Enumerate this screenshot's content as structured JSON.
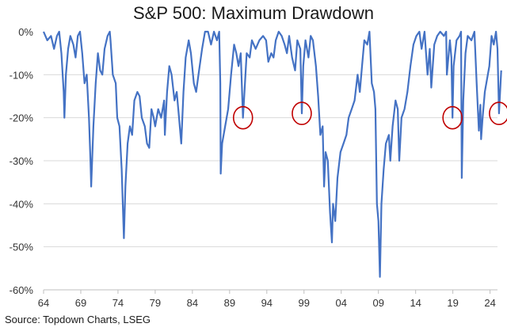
{
  "chart_data": {
    "type": "line",
    "title": "S&P 500: Maximum Drawdown",
    "source": "Source: Topdown Charts, LSEG",
    "xlabel": "",
    "ylabel": "",
    "xlim": [
      1964,
      2025
    ],
    "ylim": [
      -60,
      0
    ],
    "x_ticks": [
      1964,
      1969,
      1974,
      1979,
      1984,
      1989,
      1994,
      1999,
      2004,
      2009,
      2014,
      2019,
      2024
    ],
    "x_tick_labels": [
      "64",
      "69",
      "74",
      "79",
      "84",
      "89",
      "94",
      "99",
      "04",
      "09",
      "14",
      "19",
      "24"
    ],
    "y_ticks": [
      0,
      -10,
      -20,
      -30,
      -40,
      -50,
      -60
    ],
    "y_tick_labels": [
      "0%",
      "-10%",
      "-20%",
      "-30%",
      "-40%",
      "-50%",
      "-60%"
    ],
    "grid": "horizontal",
    "line_color": "#4472C4",
    "highlight_color": "#C00000",
    "series": [
      {
        "values": [
          [
            1964.0,
            0
          ],
          [
            1964.5,
            -2
          ],
          [
            1965.0,
            -1
          ],
          [
            1965.4,
            -4
          ],
          [
            1965.8,
            -1
          ],
          [
            1966.1,
            0
          ],
          [
            1966.4,
            -5
          ],
          [
            1966.7,
            -14
          ],
          [
            1966.8,
            -20
          ],
          [
            1967.0,
            -10
          ],
          [
            1967.3,
            -4
          ],
          [
            1967.6,
            -1
          ],
          [
            1968.0,
            -3
          ],
          [
            1968.3,
            -6
          ],
          [
            1968.6,
            -1
          ],
          [
            1968.9,
            0
          ],
          [
            1969.2,
            -5
          ],
          [
            1969.5,
            -12
          ],
          [
            1969.8,
            -10
          ],
          [
            1970.1,
            -20
          ],
          [
            1970.3,
            -30
          ],
          [
            1970.4,
            -36
          ],
          [
            1970.7,
            -22
          ],
          [
            1971.0,
            -12
          ],
          [
            1971.3,
            -5
          ],
          [
            1971.6,
            -9
          ],
          [
            1971.9,
            -10
          ],
          [
            1972.2,
            -4
          ],
          [
            1972.6,
            -1
          ],
          [
            1972.9,
            0
          ],
          [
            1973.0,
            -2
          ],
          [
            1973.3,
            -10
          ],
          [
            1973.7,
            -12
          ],
          [
            1973.9,
            -20
          ],
          [
            1974.2,
            -22
          ],
          [
            1974.5,
            -32
          ],
          [
            1974.8,
            -48
          ],
          [
            1975.0,
            -36
          ],
          [
            1975.3,
            -26
          ],
          [
            1975.6,
            -22
          ],
          [
            1975.9,
            -24
          ],
          [
            1976.2,
            -16
          ],
          [
            1976.6,
            -14
          ],
          [
            1976.9,
            -15
          ],
          [
            1977.2,
            -20
          ],
          [
            1977.6,
            -22
          ],
          [
            1977.9,
            -26
          ],
          [
            1978.2,
            -27
          ],
          [
            1978.5,
            -18
          ],
          [
            1978.8,
            -20
          ],
          [
            1979.0,
            -22
          ],
          [
            1979.4,
            -18
          ],
          [
            1979.8,
            -20
          ],
          [
            1980.2,
            -16
          ],
          [
            1980.3,
            -24
          ],
          [
            1980.6,
            -14
          ],
          [
            1980.9,
            -8
          ],
          [
            1981.2,
            -10
          ],
          [
            1981.6,
            -16
          ],
          [
            1981.9,
            -14
          ],
          [
            1982.2,
            -20
          ],
          [
            1982.5,
            -26
          ],
          [
            1982.8,
            -14
          ],
          [
            1983.1,
            -6
          ],
          [
            1983.5,
            -2
          ],
          [
            1983.8,
            -5
          ],
          [
            1984.2,
            -12
          ],
          [
            1984.5,
            -14
          ],
          [
            1984.9,
            -9
          ],
          [
            1985.3,
            -4
          ],
          [
            1985.7,
            0
          ],
          [
            1986.1,
            0
          ],
          [
            1986.5,
            -3
          ],
          [
            1986.9,
            0
          ],
          [
            1987.3,
            -2
          ],
          [
            1987.6,
            0
          ],
          [
            1987.75,
            -12
          ],
          [
            1987.8,
            -33
          ],
          [
            1988.0,
            -26
          ],
          [
            1988.4,
            -22
          ],
          [
            1988.8,
            -18
          ],
          [
            1989.2,
            -10
          ],
          [
            1989.6,
            -3
          ],
          [
            1989.9,
            -5
          ],
          [
            1990.2,
            -8
          ],
          [
            1990.5,
            -5
          ],
          [
            1990.8,
            -20
          ],
          [
            1991.0,
            -14
          ],
          [
            1991.3,
            -5
          ],
          [
            1991.7,
            -6
          ],
          [
            1992.0,
            -2
          ],
          [
            1992.5,
            -4
          ],
          [
            1993.0,
            -2
          ],
          [
            1993.5,
            -1
          ],
          [
            1993.9,
            -2
          ],
          [
            1994.2,
            -7
          ],
          [
            1994.6,
            -5
          ],
          [
            1994.9,
            -6
          ],
          [
            1995.2,
            -2
          ],
          [
            1995.6,
            0
          ],
          [
            1996.0,
            -1
          ],
          [
            1996.4,
            -3
          ],
          [
            1996.7,
            -5
          ],
          [
            1997.0,
            -1
          ],
          [
            1997.4,
            -6
          ],
          [
            1997.8,
            -9
          ],
          [
            1998.1,
            -2
          ],
          [
            1998.5,
            -4
          ],
          [
            1998.7,
            -19
          ],
          [
            1998.9,
            -8
          ],
          [
            1999.2,
            -2
          ],
          [
            1999.6,
            -6
          ],
          [
            1999.9,
            -1
          ],
          [
            2000.2,
            -2
          ],
          [
            2000.6,
            -8
          ],
          [
            2000.9,
            -15
          ],
          [
            2001.2,
            -24
          ],
          [
            2001.5,
            -22
          ],
          [
            2001.7,
            -36
          ],
          [
            2001.9,
            -28
          ],
          [
            2002.2,
            -30
          ],
          [
            2002.5,
            -42
          ],
          [
            2002.75,
            -49
          ],
          [
            2002.9,
            -40
          ],
          [
            2003.2,
            -44
          ],
          [
            2003.5,
            -34
          ],
          [
            2003.9,
            -28
          ],
          [
            2004.3,
            -26
          ],
          [
            2004.7,
            -24
          ],
          [
            2005.0,
            -20
          ],
          [
            2005.4,
            -18
          ],
          [
            2005.8,
            -16
          ],
          [
            2006.2,
            -10
          ],
          [
            2006.5,
            -14
          ],
          [
            2006.8,
            -8
          ],
          [
            2007.1,
            -2
          ],
          [
            2007.5,
            -3
          ],
          [
            2007.8,
            0
          ],
          [
            2008.1,
            -12
          ],
          [
            2008.4,
            -14
          ],
          [
            2008.6,
            -18
          ],
          [
            2008.8,
            -40
          ],
          [
            2009.0,
            -44
          ],
          [
            2009.2,
            -57
          ],
          [
            2009.4,
            -40
          ],
          [
            2009.7,
            -32
          ],
          [
            2010.0,
            -26
          ],
          [
            2010.4,
            -24
          ],
          [
            2010.6,
            -30
          ],
          [
            2010.9,
            -22
          ],
          [
            2011.3,
            -16
          ],
          [
            2011.6,
            -18
          ],
          [
            2011.8,
            -30
          ],
          [
            2012.1,
            -20
          ],
          [
            2012.5,
            -18
          ],
          [
            2012.9,
            -14
          ],
          [
            2013.3,
            -8
          ],
          [
            2013.7,
            -3
          ],
          [
            2014.1,
            -1
          ],
          [
            2014.5,
            0
          ],
          [
            2014.8,
            -4
          ],
          [
            2015.2,
            0
          ],
          [
            2015.6,
            -10
          ],
          [
            2015.9,
            -4
          ],
          [
            2016.1,
            -13
          ],
          [
            2016.5,
            -3
          ],
          [
            2016.9,
            -1
          ],
          [
            2017.3,
            0
          ],
          [
            2017.8,
            -1
          ],
          [
            2018.1,
            0
          ],
          [
            2018.2,
            -10
          ],
          [
            2018.6,
            -2
          ],
          [
            2018.8,
            -6
          ],
          [
            2018.95,
            -20
          ],
          [
            2019.1,
            -8
          ],
          [
            2019.5,
            -2
          ],
          [
            2019.9,
            -1
          ],
          [
            2020.1,
            0
          ],
          [
            2020.2,
            -34
          ],
          [
            2020.4,
            -16
          ],
          [
            2020.7,
            -5
          ],
          [
            2021.0,
            -1
          ],
          [
            2021.5,
            -2
          ],
          [
            2021.9,
            0
          ],
          [
            2022.2,
            -12
          ],
          [
            2022.5,
            -23
          ],
          [
            2022.7,
            -17
          ],
          [
            2022.8,
            -25
          ],
          [
            2023.0,
            -20
          ],
          [
            2023.3,
            -14
          ],
          [
            2023.7,
            -10
          ],
          [
            2023.9,
            -8
          ],
          [
            2024.2,
            -1
          ],
          [
            2024.5,
            -3
          ],
          [
            2024.8,
            0
          ],
          [
            2025.0,
            -4
          ],
          [
            2025.2,
            -19
          ],
          [
            2025.35,
            -14
          ],
          [
            2025.5,
            -9
          ]
        ]
      }
    ],
    "highlights": [
      {
        "x": 1990.8,
        "y": -20
      },
      {
        "x": 1998.7,
        "y": -19
      },
      {
        "x": 2018.95,
        "y": -20
      },
      {
        "x": 2025.2,
        "y": -19
      }
    ]
  }
}
